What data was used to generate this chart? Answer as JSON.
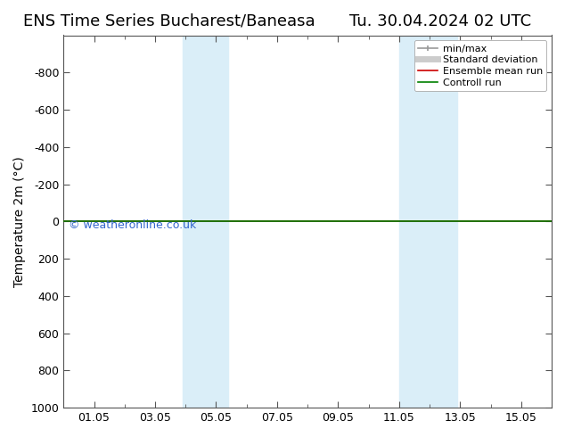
{
  "title_left": "ENS Time Series Bucharest/Baneasa",
  "title_right": "Tu. 30.04.2024 02 UTC",
  "ylabel": "Temperature 2m (°C)",
  "ylim_top": -1000,
  "ylim_bottom": 1000,
  "yticks": [
    -800,
    -600,
    -400,
    -200,
    0,
    200,
    400,
    600,
    800,
    1000
  ],
  "xtick_labels": [
    "01.05",
    "03.05",
    "05.05",
    "07.05",
    "09.05",
    "11.05",
    "13.05",
    "15.05"
  ],
  "xtick_positions": [
    1,
    3,
    5,
    7,
    9,
    11,
    13,
    15
  ],
  "xlim": [
    0,
    16
  ],
  "background_color": "#ffffff",
  "plot_bg_color": "#ffffff",
  "shaded_bands": [
    {
      "x_start": 3.9,
      "x_end": 5.4
    },
    {
      "x_start": 11.0,
      "x_end": 12.9
    }
  ],
  "shaded_color": "#daeef8",
  "green_line_y": 0,
  "red_line_y": 0,
  "watermark": "© weatheronline.co.uk",
  "watermark_color": "#3366cc",
  "legend_items": [
    {
      "label": "min/max",
      "color": "#999999",
      "lw": 1.2
    },
    {
      "label": "Standard deviation",
      "color": "#cccccc",
      "lw": 5
    },
    {
      "label": "Ensemble mean run",
      "color": "#cc0000",
      "lw": 1.2
    },
    {
      "label": "Controll run",
      "color": "#008000",
      "lw": 1.2
    }
  ],
  "title_fontsize": 13,
  "axis_label_fontsize": 10,
  "tick_fontsize": 9,
  "legend_fontsize": 8
}
